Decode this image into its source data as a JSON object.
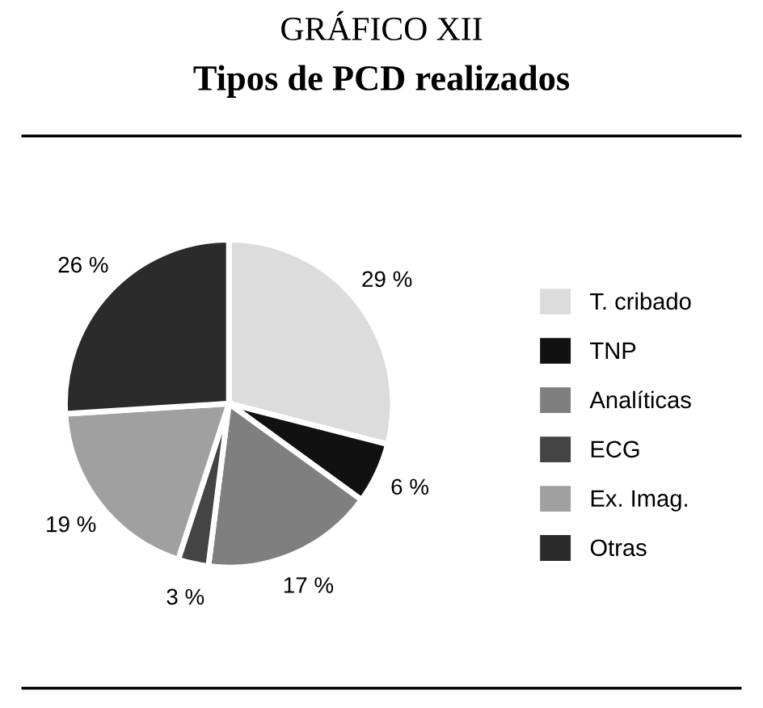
{
  "chart_data": {
    "type": "pie",
    "title": "GRÁFICO XII",
    "subtitle": "Tipos de PCD realizados",
    "categories": [
      "T. cribado",
      "TNP",
      "Analíticas",
      "ECG",
      "Ex. Imag.",
      "Otras"
    ],
    "values": [
      29,
      6,
      17,
      3,
      19,
      26
    ],
    "colors": [
      "#dcdcdc",
      "#111111",
      "#7f7f7f",
      "#444444",
      "#a0a0a0",
      "#2b2b2b"
    ],
    "value_labels": [
      "29 %",
      "6 %",
      "17 %",
      "3 %",
      "19 %",
      "26 %"
    ],
    "legend": "right"
  }
}
